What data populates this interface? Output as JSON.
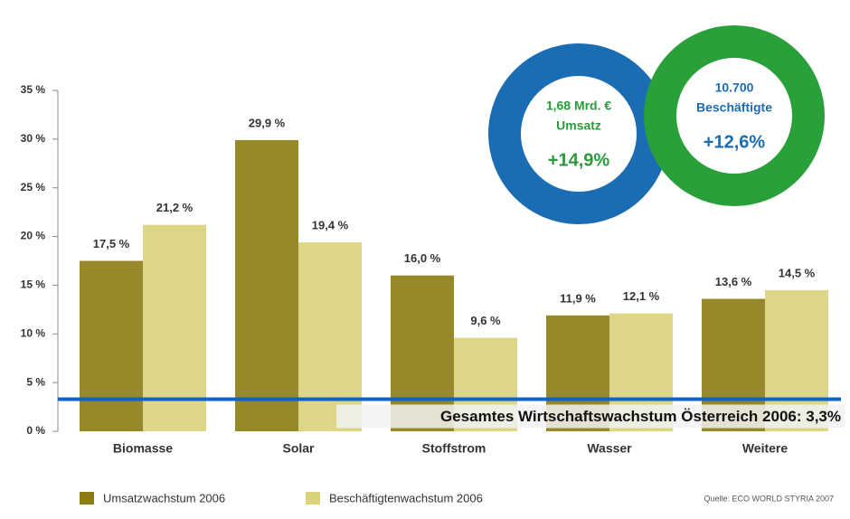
{
  "chart_data": {
    "type": "bar",
    "categories": [
      "Biomasse",
      "Solar",
      "Stoffstrom",
      "Wasser",
      "Weitere"
    ],
    "series": [
      {
        "name": "Umsatzwachstum 2006",
        "color": "#8c7c12",
        "values": [
          17.5,
          29.9,
          16.0,
          11.9,
          13.6
        ],
        "value_labels": [
          "17,5 %",
          "29,9 %",
          "16,0 %",
          "11,9 %",
          "13,6 %"
        ]
      },
      {
        "name": "Beschäftigtenwachstum 2006",
        "color": "#d9d27a",
        "values": [
          21.2,
          19.4,
          9.6,
          12.1,
          14.5
        ],
        "value_labels": [
          "21,2 %",
          "19,4 %",
          "9,6 %",
          "12,1 %",
          "14,5 %"
        ]
      }
    ],
    "ylim": [
      0,
      35
    ],
    "yticks": [
      {
        "value": 0,
        "label": "0 %"
      },
      {
        "value": 5,
        "label": "5 %"
      },
      {
        "value": 10,
        "label": "10 %"
      },
      {
        "value": 15,
        "label": "15 %"
      },
      {
        "value": 20,
        "label": "20 %"
      },
      {
        "value": 25,
        "label": "25 %"
      },
      {
        "value": 30,
        "label": "30 %"
      },
      {
        "value": 35,
        "label": "35 %"
      }
    ],
    "reference_line": {
      "value": 3.3,
      "label": "Gesamtes Wirtschaftswachstum Österreich 2006: 3,3%",
      "color": "#1262c4"
    },
    "rings": [
      {
        "lines": [
          "1,68 Mrd. €",
          "Umsatz",
          "+14,9%"
        ],
        "color": "#1a6db3",
        "text_color": "#2a9a3a"
      },
      {
        "lines": [
          "10.700",
          "Beschäftigte",
          "+12,6%"
        ],
        "color": "#2aa03a",
        "text_color": "#1a6db3"
      }
    ],
    "source": "Quelle: ECO WORLD STYRIA 2007"
  }
}
